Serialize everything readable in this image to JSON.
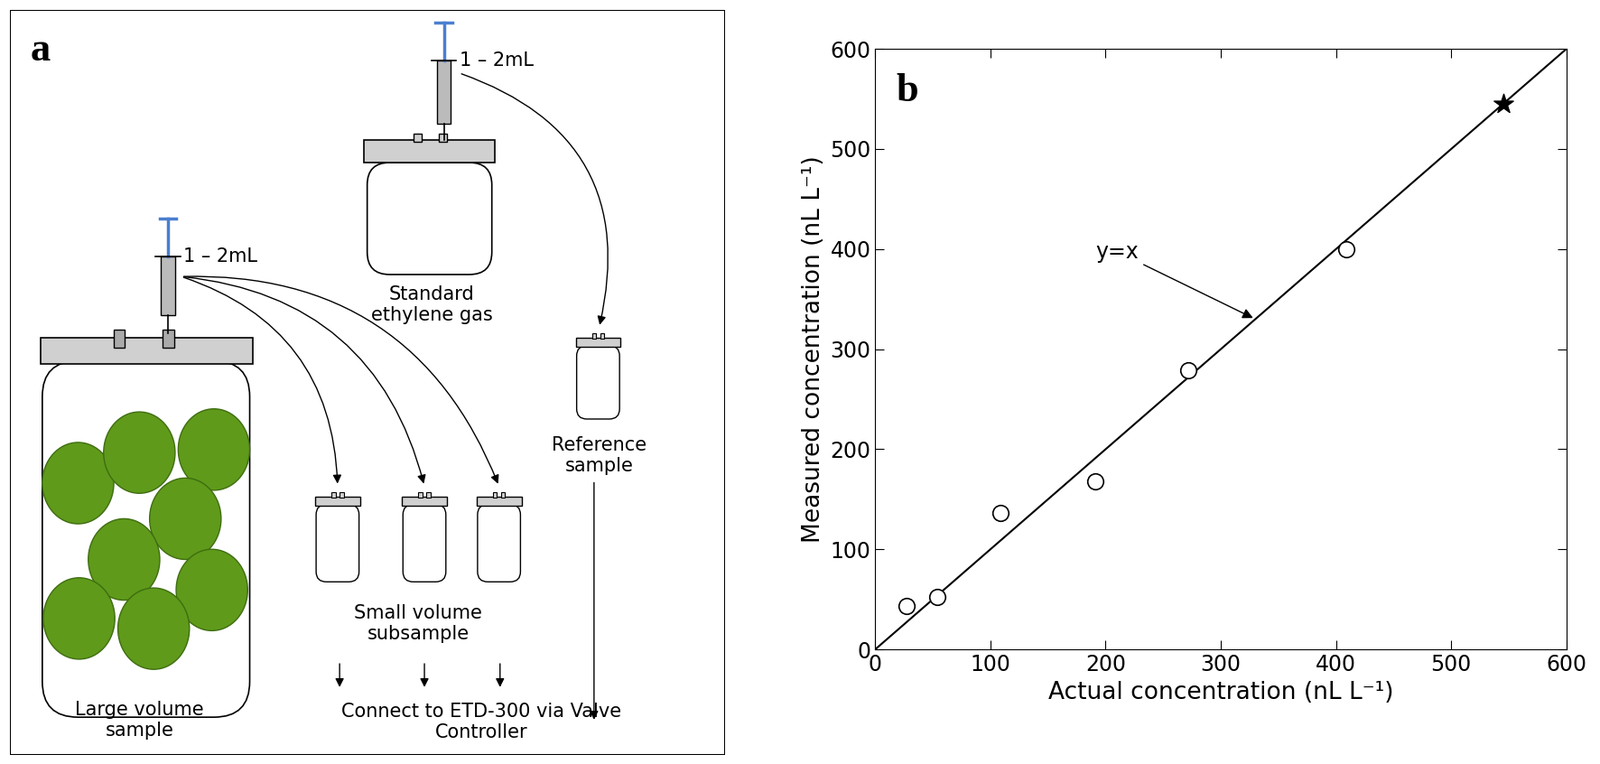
{
  "diagram": {
    "panel_label": "a",
    "syringe_labels": [
      "1 – 2mL",
      "1 – 2mL"
    ],
    "nodes": [
      {
        "label": "Standard\nethylene gas"
      },
      {
        "label": "Reference\nsample"
      },
      {
        "label": "Large volume\nsample"
      },
      {
        "label": "Small volume\nsubsample"
      },
      {
        "label": "Connect to ETD-300 via Valve\nController"
      }
    ]
  },
  "chart_data": {
    "type": "scatter",
    "panel_label": "b",
    "x_label": "Actual concentration (nL L⁻¹)",
    "y_label": "Measured concentration (nL L⁻¹)",
    "xlim": [
      0,
      600
    ],
    "ylim": [
      0,
      600
    ],
    "xticks": [
      0,
      100,
      200,
      300,
      400,
      500,
      600
    ],
    "yticks": [
      0,
      100,
      200,
      300,
      400,
      500,
      600
    ],
    "series": [
      {
        "type": "scatter",
        "marker": "circle",
        "color": "#000000",
        "x": [
          27,
          54,
          109,
          191,
          272,
          409
        ],
        "values": [
          43,
          52,
          136,
          168,
          279,
          400
        ]
      },
      {
        "type": "scatter",
        "marker": "star",
        "color": "#000000",
        "x": [
          545
        ],
        "values": [
          545
        ]
      },
      {
        "type": "line",
        "color": "#000000",
        "x": [
          0,
          600
        ],
        "values": [
          0,
          600
        ]
      }
    ],
    "annotations": [
      {
        "text": "y=x",
        "x": 330,
        "y": 330
      }
    ]
  }
}
